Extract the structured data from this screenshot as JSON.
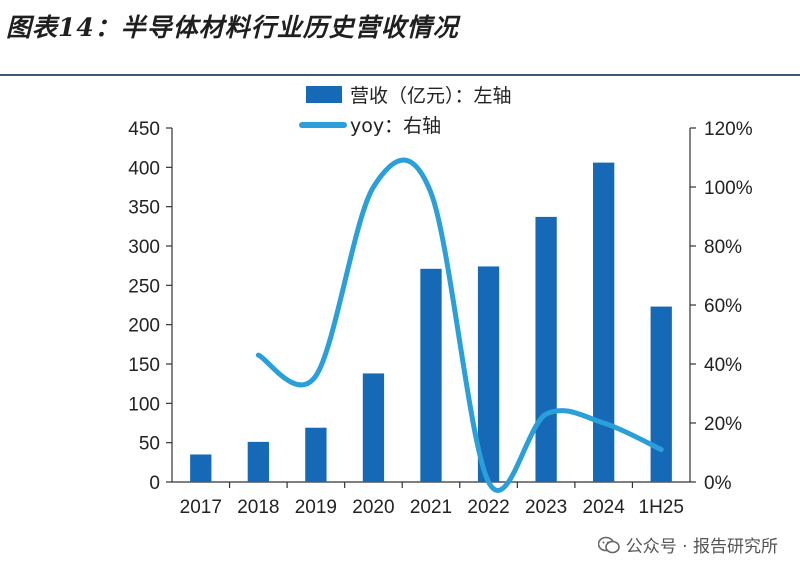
{
  "figure": {
    "title": "图表14：半导体材料行业历史营收情况"
  },
  "watermark": {
    "text": "公众号 · 报告研究所"
  },
  "colors": {
    "bar": "#1569b6",
    "line": "#2a9fda",
    "axis": "#333333",
    "title_rule": "#3a5a7a"
  },
  "chart_data": {
    "type": "bar",
    "categories": [
      "2017",
      "2018",
      "2019",
      "2020",
      "2021",
      "2022",
      "2023",
      "2024",
      "1H25"
    ],
    "series": [
      {
        "name": "营收（亿元）：左轴",
        "type": "bar",
        "axis": "left",
        "values": [
          35,
          51,
          69,
          138,
          271,
          274,
          337,
          406,
          223
        ]
      },
      {
        "name": "yoy：右轴",
        "type": "line",
        "axis": "right",
        "values": [
          null,
          43,
          36,
          100,
          98,
          0,
          23,
          20,
          11
        ]
      }
    ],
    "left_axis": {
      "ylim": [
        0,
        450
      ],
      "ticks": [
        "0",
        "50",
        "100",
        "150",
        "200",
        "250",
        "300",
        "350",
        "400",
        "450"
      ]
    },
    "right_axis": {
      "ylim": [
        0,
        120
      ],
      "ticks": [
        "0%",
        "20%",
        "40%",
        "60%",
        "80%",
        "100%",
        "120%"
      ]
    },
    "grid": false,
    "legend_position": "top-center"
  }
}
